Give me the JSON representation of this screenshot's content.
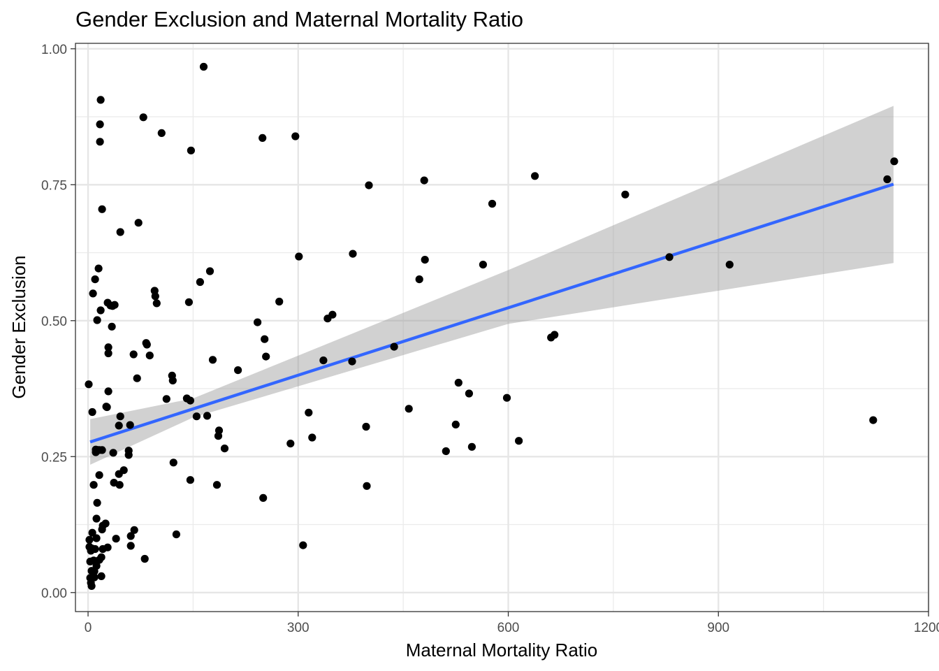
{
  "chart_data": {
    "type": "scatter",
    "title": "Gender Exclusion and Maternal Mortality Ratio",
    "xlabel": "Maternal Mortality Ratio",
    "ylabel": "Gender Exclusion",
    "xlim": [
      -18,
      1200
    ],
    "ylim": [
      -0.035,
      1.01
    ],
    "x_ticks": [
      0,
      300,
      600,
      900,
      1200
    ],
    "x_tick_labels": [
      "0",
      "300",
      "600",
      "900",
      "1200"
    ],
    "y_ticks": [
      0,
      0.25,
      0.5,
      0.75,
      1.0
    ],
    "y_tick_labels": [
      "0.00",
      "0.25",
      "0.50",
      "0.75",
      "1.00"
    ],
    "x_minor_ticks": [
      150,
      450,
      750,
      1050
    ],
    "y_minor_ticks": [
      0.125,
      0.375,
      0.625,
      0.875
    ],
    "grid": true,
    "theme": "bw",
    "colors": {
      "points": "#000000",
      "fit_line": "#3366FF",
      "confidence_band": "#999999"
    },
    "fit": {
      "method": "linear",
      "x_range": [
        3,
        1150
      ],
      "y_start": 0.277,
      "y_end": 0.751,
      "ci_lower": [
        [
          3,
          0.235
        ],
        [
          150,
          0.322
        ],
        [
          600,
          0.494
        ],
        [
          1150,
          0.606
        ]
      ],
      "ci_upper": [
        [
          3,
          0.319
        ],
        [
          150,
          0.357
        ],
        [
          600,
          0.593
        ],
        [
          1150,
          0.895
        ]
      ]
    },
    "points": [
      [
        1,
        0.383
      ],
      [
        2,
        0.097
      ],
      [
        2,
        0.084
      ],
      [
        3,
        0.057
      ],
      [
        3,
        0.027
      ],
      [
        4,
        0.077
      ],
      [
        4,
        0.018
      ],
      [
        5,
        0.012
      ],
      [
        5,
        0.04
      ],
      [
        6,
        0.081
      ],
      [
        6,
        0.332
      ],
      [
        6,
        0.11
      ],
      [
        7,
        0.55
      ],
      [
        8,
        0.198
      ],
      [
        8,
        0.059
      ],
      [
        9,
        0.039
      ],
      [
        9,
        0.028
      ],
      [
        10,
        0.576
      ],
      [
        10,
        0.08
      ],
      [
        11,
        0.263
      ],
      [
        11,
        0.258
      ],
      [
        12,
        0.136
      ],
      [
        12,
        0.049
      ],
      [
        12,
        0.1
      ],
      [
        13,
        0.501
      ],
      [
        13,
        0.165
      ],
      [
        14,
        0.262
      ],
      [
        15,
        0.596
      ],
      [
        16,
        0.262
      ],
      [
        16,
        0.216
      ],
      [
        16,
        0.06
      ],
      [
        17,
        0.861
      ],
      [
        17,
        0.829
      ],
      [
        18,
        0.906
      ],
      [
        18,
        0.519
      ],
      [
        19,
        0.065
      ],
      [
        19,
        0.03
      ],
      [
        20,
        0.705
      ],
      [
        20,
        0.262
      ],
      [
        20,
        0.116
      ],
      [
        21,
        0.123
      ],
      [
        21,
        0.08
      ],
      [
        25,
        0.127
      ],
      [
        26,
        0.342
      ],
      [
        27,
        0.341
      ],
      [
        28,
        0.083
      ],
      [
        28,
        0.533
      ],
      [
        29,
        0.451
      ],
      [
        29,
        0.44
      ],
      [
        29,
        0.37
      ],
      [
        32,
        0.528
      ],
      [
        34,
        0.489
      ],
      [
        35,
        0.527
      ],
      [
        36,
        0.257
      ],
      [
        37,
        0.202
      ],
      [
        38,
        0.529
      ],
      [
        40,
        0.099
      ],
      [
        44,
        0.307
      ],
      [
        44,
        0.218
      ],
      [
        45,
        0.198
      ],
      [
        46,
        0.324
      ],
      [
        46,
        0.663
      ],
      [
        51,
        0.225
      ],
      [
        58,
        0.261
      ],
      [
        58,
        0.253
      ],
      [
        60,
        0.308
      ],
      [
        61,
        0.104
      ],
      [
        61,
        0.086
      ],
      [
        65,
        0.438
      ],
      [
        66,
        0.115
      ],
      [
        70,
        0.394
      ],
      [
        72,
        0.68
      ],
      [
        79,
        0.874
      ],
      [
        81,
        0.062
      ],
      [
        83,
        0.459
      ],
      [
        84,
        0.456
      ],
      [
        88,
        0.436
      ],
      [
        95,
        0.555
      ],
      [
        96,
        0.545
      ],
      [
        98,
        0.532
      ],
      [
        105,
        0.845
      ],
      [
        112,
        0.356
      ],
      [
        120,
        0.399
      ],
      [
        121,
        0.39
      ],
      [
        122,
        0.239
      ],
      [
        126,
        0.107
      ],
      [
        141,
        0.357
      ],
      [
        144,
        0.534
      ],
      [
        146,
        0.207
      ],
      [
        146,
        0.353
      ],
      [
        147,
        0.813
      ],
      [
        155,
        0.324
      ],
      [
        160,
        0.571
      ],
      [
        165,
        0.967
      ],
      [
        170,
        0.325
      ],
      [
        174,
        0.591
      ],
      [
        178,
        0.428
      ],
      [
        184,
        0.198
      ],
      [
        186,
        0.288
      ],
      [
        187,
        0.298
      ],
      [
        195,
        0.265
      ],
      [
        214,
        0.409
      ],
      [
        242,
        0.497
      ],
      [
        249,
        0.836
      ],
      [
        250,
        0.174
      ],
      [
        252,
        0.466
      ],
      [
        254,
        0.434
      ],
      [
        273,
        0.535
      ],
      [
        289,
        0.274
      ],
      [
        296,
        0.839
      ],
      [
        301,
        0.618
      ],
      [
        307,
        0.087
      ],
      [
        315,
        0.331
      ],
      [
        320,
        0.285
      ],
      [
        336,
        0.427
      ],
      [
        342,
        0.504
      ],
      [
        349,
        0.511
      ],
      [
        377,
        0.425
      ],
      [
        378,
        0.623
      ],
      [
        397,
        0.305
      ],
      [
        398,
        0.196
      ],
      [
        401,
        0.749
      ],
      [
        437,
        0.452
      ],
      [
        458,
        0.338
      ],
      [
        473,
        0.576
      ],
      [
        480,
        0.758
      ],
      [
        481,
        0.612
      ],
      [
        511,
        0.26
      ],
      [
        525,
        0.309
      ],
      [
        529,
        0.386
      ],
      [
        544,
        0.366
      ],
      [
        548,
        0.268
      ],
      [
        564,
        0.603
      ],
      [
        577,
        0.715
      ],
      [
        598,
        0.358
      ],
      [
        615,
        0.279
      ],
      [
        638,
        0.766
      ],
      [
        661,
        0.469
      ],
      [
        666,
        0.474
      ],
      [
        767,
        0.732
      ],
      [
        830,
        0.617
      ],
      [
        916,
        0.603
      ],
      [
        1121,
        0.317
      ],
      [
        1141,
        0.76
      ],
      [
        1151,
        0.793
      ]
    ]
  }
}
